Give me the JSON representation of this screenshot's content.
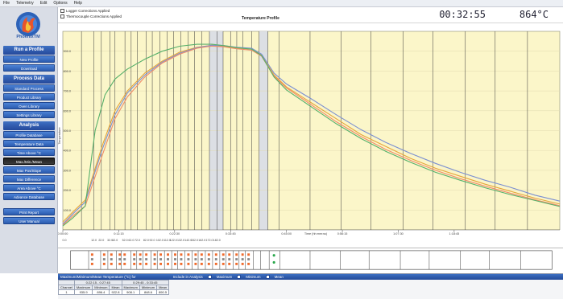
{
  "menu": [
    "File",
    "Telemetry",
    "Edit",
    "Options",
    "Help"
  ],
  "logo_text": "PhoenixTM",
  "sidebar": {
    "sections": [
      {
        "title": "Run a Profile",
        "items": [
          "New Profile",
          "Download"
        ]
      },
      {
        "title": "Process Data",
        "items": [
          "Standard Process",
          "Product Library",
          "Oven Library",
          "Settings Library"
        ]
      },
      {
        "title": "Analysis",
        "items": [
          "Profile Database",
          "Temperature Data",
          "Time Above °C",
          "Max./Min./Mean",
          "Max Pos/Slope",
          "Max Difference",
          "Area Above °C",
          "Advance Database"
        ],
        "active_index": 3
      },
      {
        "title": "",
        "items": [
          "Print Report",
          "User Manual"
        ]
      }
    ]
  },
  "options": {
    "logger_corrections": "Logger Corrections Applied",
    "thermocouple_corrections": "Thermocouple Corrections Applied"
  },
  "clock": "00:32:55",
  "temp_readout": "864°C",
  "chart_data": {
    "type": "line",
    "title": "Temperature Profile",
    "ylabel": "Temperature",
    "xlabel": "Time (hh:mm:ss)",
    "ylim": [
      0,
      1000
    ],
    "xlim": [
      0,
      2000
    ],
    "y_ticks": [
      100,
      200,
      300,
      400,
      500,
      600,
      700,
      800,
      900
    ],
    "y_tick_labels": [
      "100.0",
      "200.0",
      "300.0",
      "400.0",
      "500.0",
      "600.0",
      "700.0",
      "800.0",
      "900.0"
    ],
    "x_tick_labels": [
      "0:00:00",
      "0:11:15",
      "0:22:30",
      "0:33:45",
      "0:45:00",
      "0:56:15",
      "1:07:30",
      "1:18:45"
    ],
    "x_ticks": [
      0,
      225,
      450,
      675,
      900,
      1125,
      1350,
      1575
    ],
    "zone_labels": [
      "0.0",
      "12.0",
      "22.0",
      "32.0",
      "42.0",
      "52.0",
      "62.0",
      "72.0",
      "82.0",
      "92.0",
      "102.0",
      "112.0",
      "122.0",
      "132.0",
      "142.0",
      "152.0",
      "162.0",
      "172.0",
      "182.0"
    ],
    "highlight_bands": [
      [
        590,
        645
      ],
      [
        790,
        825
      ]
    ],
    "vertical_lines": [
      75,
      125,
      155,
      190,
      210,
      250,
      275,
      300,
      335,
      360,
      390,
      420,
      445,
      475,
      505,
      530,
      560,
      590,
      620,
      645,
      675,
      700,
      725,
      760,
      790,
      825,
      870,
      995,
      1120,
      1240,
      1370,
      1490,
      1620,
      1740,
      1870
    ],
    "series": [
      {
        "color": "#e6a53a",
        "x": [
          0,
          40,
          90,
          160,
          210,
          260,
          330,
          400,
          470,
          540,
          600,
          650,
          700,
          760,
          800,
          850,
          900,
          1000,
          1100,
          1200,
          1300,
          1400,
          1500,
          1600,
          1700,
          1800,
          1900,
          2000
        ],
        "y": [
          40,
          90,
          150,
          430,
          600,
          700,
          790,
          850,
          895,
          920,
          930,
          925,
          915,
          910,
          880,
          780,
          720,
          640,
          560,
          480,
          420,
          360,
          310,
          270,
          230,
          195,
          160,
          130
        ]
      },
      {
        "color": "#7b8fd0",
        "x": [
          0,
          40,
          90,
          160,
          210,
          260,
          330,
          400,
          470,
          540,
          600,
          650,
          700,
          760,
          800,
          850,
          900,
          1000,
          1100,
          1200,
          1300,
          1400,
          1500,
          1600,
          1700,
          1800,
          1900,
          2000
        ],
        "y": [
          30,
          80,
          140,
          410,
          580,
          690,
          780,
          845,
          890,
          918,
          930,
          928,
          920,
          915,
          885,
          790,
          735,
          660,
          580,
          505,
          440,
          385,
          335,
          290,
          250,
          215,
          175,
          145
        ]
      },
      {
        "color": "#f08c6a",
        "x": [
          0,
          40,
          90,
          160,
          210,
          260,
          330,
          400,
          470,
          540,
          600,
          650,
          700,
          760,
          800,
          850,
          900,
          1000,
          1100,
          1200,
          1300,
          1400,
          1500,
          1600,
          1700,
          1800,
          1900,
          2000
        ],
        "y": [
          25,
          70,
          120,
          380,
          560,
          670,
          770,
          840,
          885,
          915,
          926,
          922,
          912,
          905,
          875,
          775,
          715,
          630,
          545,
          470,
          405,
          350,
          300,
          258,
          220,
          185,
          152,
          122
        ]
      },
      {
        "color": "#57b06b",
        "x": [
          0,
          40,
          90,
          130,
          170,
          210,
          260,
          330,
          400,
          470,
          540,
          600,
          650,
          700,
          760,
          800,
          850,
          900,
          1000,
          1100,
          1200,
          1300,
          1400,
          1500,
          1600,
          1700,
          1800,
          1900,
          2000
        ],
        "y": [
          20,
          60,
          120,
          500,
          680,
          760,
          810,
          860,
          900,
          925,
          935,
          935,
          928,
          918,
          910,
          878,
          770,
          705,
          620,
          535,
          460,
          395,
          340,
          290,
          250,
          212,
          178,
          148,
          118
        ]
      }
    ]
  },
  "footer": {
    "title": "Maximum/Minimum/Mean Temperature (°C) for",
    "include_label": "Include in Analysis",
    "opt_max": "Maximum",
    "opt_min": "Minimum",
    "opt_mean": "Mean",
    "range1": "0:22:15 - 0:27:45",
    "range2": "0:29:45 - 0:33:45",
    "headers": [
      "Channel",
      "Maximum",
      "Minimum",
      "Mean",
      "Maximum",
      "Minimum",
      "Mean"
    ],
    "row": [
      "1",
      "935.9",
      "896.4",
      "922.8",
      "908.1",
      "848.6",
      "890.5"
    ]
  }
}
